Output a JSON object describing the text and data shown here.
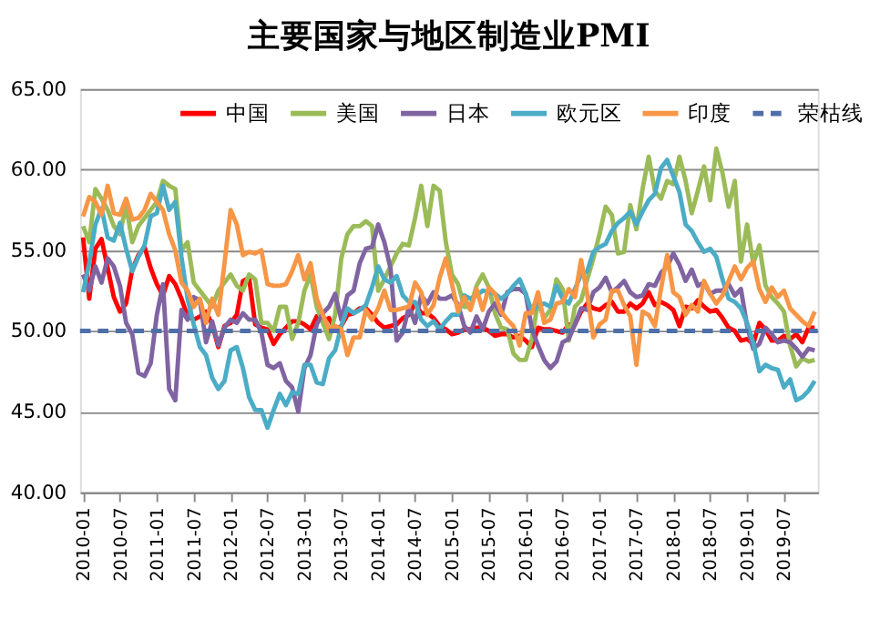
{
  "chart_data": {
    "type": "line",
    "title": "主要国家与地区制造业PMI",
    "categories": [
      "2010-01",
      null,
      null,
      null,
      null,
      null,
      "2010-07",
      null,
      null,
      null,
      null,
      null,
      "2011-01",
      null,
      null,
      null,
      null,
      null,
      "2011-07",
      null,
      null,
      null,
      null,
      null,
      "2012-01",
      null,
      null,
      null,
      null,
      null,
      "2012-07",
      null,
      null,
      null,
      null,
      null,
      "2013-01",
      null,
      null,
      null,
      null,
      null,
      "2013-07",
      null,
      null,
      null,
      null,
      null,
      "2014-01",
      null,
      null,
      null,
      null,
      null,
      "2014-07",
      null,
      null,
      null,
      null,
      null,
      "2015-01",
      null,
      null,
      null,
      null,
      null,
      "2015-07",
      null,
      null,
      null,
      null,
      null,
      "2016-01",
      null,
      null,
      null,
      null,
      null,
      "2016-07",
      null,
      null,
      null,
      null,
      null,
      "2017-01",
      null,
      null,
      null,
      null,
      null,
      "2017-07",
      null,
      null,
      null,
      null,
      null,
      "2018-01",
      null,
      null,
      null,
      null,
      null,
      "2018-07",
      null,
      null,
      null,
      null,
      null,
      "2019-01",
      null,
      null,
      null,
      null,
      null,
      "2019-07",
      null,
      null,
      null,
      null,
      null
    ],
    "series": [
      {
        "name": "中国",
        "color": "#ff0000",
        "values": [
          55.8,
          52.0,
          55.1,
          55.7,
          53.9,
          52.1,
          51.2,
          51.7,
          53.8,
          54.7,
          55.2,
          53.9,
          52.9,
          52.2,
          53.4,
          52.9,
          52.0,
          50.9,
          50.7,
          50.9,
          51.2,
          50.4,
          49.0,
          50.3,
          50.5,
          51.0,
          53.1,
          53.3,
          50.4,
          50.2,
          50.1,
          49.2,
          49.8,
          50.2,
          50.6,
          50.6,
          50.4,
          50.1,
          50.9,
          50.6,
          50.8,
          50.1,
          50.3,
          51.0,
          51.1,
          51.4,
          51.4,
          51.0,
          50.5,
          50.2,
          50.3,
          50.4,
          50.8,
          51.0,
          51.7,
          51.1,
          51.1,
          50.8,
          50.3,
          50.1,
          49.8,
          49.9,
          50.1,
          50.1,
          50.2,
          50.2,
          50.0,
          49.7,
          49.8,
          49.8,
          49.6,
          49.7,
          49.4,
          49.0,
          50.2,
          50.1,
          50.1,
          50.0,
          49.9,
          50.4,
          50.4,
          51.2,
          51.7,
          51.4,
          51.3,
          51.6,
          51.8,
          51.2,
          51.2,
          51.7,
          51.4,
          51.7,
          52.4,
          51.6,
          51.8,
          51.6,
          51.3,
          50.3,
          51.5,
          51.4,
          51.9,
          51.5,
          51.2,
          51.3,
          50.8,
          50.2,
          50.0,
          49.4,
          49.5,
          49.2,
          50.5,
          50.1,
          49.4,
          49.4,
          49.7,
          49.5,
          49.8,
          49.3,
          50.2,
          50.2
        ]
      },
      {
        "name": "美国",
        "color": "#9bbb59",
        "values": [
          56.5,
          55.5,
          58.8,
          58.2,
          57.5,
          56.5,
          56.0,
          57.8,
          55.5,
          56.5,
          57.0,
          57.5,
          58.0,
          59.3,
          59.0,
          58.8,
          55.0,
          55.5,
          53.0,
          52.5,
          52.0,
          51.5,
          52.5,
          53.0,
          53.5,
          52.8,
          52.5,
          53.5,
          53.2,
          50.5,
          50.5,
          50.0,
          51.5,
          51.5,
          49.5,
          50.5,
          52.5,
          53.5,
          51.5,
          50.5,
          49.5,
          51.0,
          54.5,
          56.0,
          56.5,
          56.5,
          56.8,
          56.5,
          52.5,
          53.2,
          54.0,
          54.8,
          55.4,
          55.3,
          57.0,
          59.0,
          56.5,
          59.0,
          58.7,
          55.5,
          53.5,
          52.9,
          51.5,
          51.5,
          52.8,
          53.5,
          52.7,
          51.1,
          50.2,
          50.1,
          48.6,
          48.2,
          48.2,
          49.5,
          51.8,
          50.8,
          51.3,
          53.2,
          52.6,
          49.4,
          51.5,
          51.9,
          53.2,
          54.5,
          56.0,
          57.7,
          57.2,
          54.8,
          54.9,
          57.8,
          56.3,
          58.8,
          60.8,
          58.7,
          58.2,
          59.3,
          59.1,
          60.8,
          59.3,
          57.3,
          58.7,
          60.2,
          58.1,
          61.3,
          59.8,
          57.7,
          59.3,
          54.3,
          56.6,
          54.2,
          55.3,
          52.8,
          52.1,
          51.7,
          51.2,
          49.1,
          47.8,
          48.3,
          48.1,
          48.2
        ]
      },
      {
        "name": "日本",
        "color": "#8064a2",
        "values": [
          53.5,
          52.5,
          54.0,
          53.0,
          54.5,
          54.0,
          52.8,
          50.5,
          49.8,
          47.4,
          47.2,
          48.0,
          51.0,
          52.9,
          46.4,
          45.7,
          51.3,
          50.7,
          52.1,
          51.9,
          49.3,
          50.6,
          49.1,
          50.2,
          50.7,
          50.5,
          51.1,
          50.7,
          50.7,
          49.9,
          47.9,
          47.7,
          48.0,
          46.9,
          46.5,
          45.0,
          47.7,
          48.5,
          50.4,
          51.1,
          51.5,
          52.3,
          50.7,
          52.2,
          52.5,
          54.2,
          55.1,
          55.2,
          56.6,
          55.5,
          53.9,
          49.4,
          49.9,
          51.5,
          50.5,
          52.2,
          51.7,
          52.4,
          52.0,
          52.0,
          52.2,
          51.6,
          50.3,
          49.9,
          50.9,
          50.1,
          51.2,
          51.7,
          51.0,
          52.4,
          52.6,
          52.6,
          52.3,
          50.1,
          49.1,
          48.2,
          47.7,
          48.1,
          49.3,
          49.5,
          50.4,
          51.4,
          51.3,
          52.4,
          52.7,
          53.3,
          52.4,
          52.7,
          53.1,
          52.4,
          52.1,
          52.2,
          52.9,
          52.8,
          53.6,
          54.0,
          54.8,
          54.1,
          53.1,
          53.8,
          52.8,
          53.0,
          52.3,
          52.5,
          52.5,
          52.9,
          52.2,
          52.6,
          50.3,
          48.9,
          49.2,
          50.2,
          49.8,
          49.3,
          49.4,
          49.3,
          48.9,
          48.4,
          48.9,
          48.8
        ]
      },
      {
        "name": "欧元区",
        "color": "#4bacc6",
        "values": [
          52.4,
          54.2,
          56.6,
          57.6,
          55.8,
          55.6,
          56.7,
          55.1,
          53.7,
          54.6,
          55.3,
          57.1,
          57.3,
          59.0,
          57.5,
          58.0,
          54.6,
          52.0,
          50.4,
          49.0,
          48.5,
          47.1,
          46.4,
          46.9,
          48.8,
          49.0,
          47.7,
          45.9,
          45.1,
          45.1,
          44.0,
          45.1,
          46.1,
          45.4,
          46.2,
          46.1,
          47.9,
          47.9,
          46.8,
          46.7,
          48.3,
          48.8,
          50.3,
          51.4,
          51.1,
          51.3,
          51.6,
          52.7,
          54.0,
          53.2,
          53.0,
          53.4,
          52.2,
          51.8,
          51.8,
          50.7,
          50.3,
          50.6,
          50.1,
          50.6,
          51.0,
          51.0,
          52.2,
          52.0,
          52.2,
          52.5,
          52.4,
          52.3,
          52.0,
          52.3,
          52.8,
          53.2,
          52.3,
          51.2,
          51.6,
          51.7,
          51.5,
          52.8,
          52.0,
          51.7,
          52.6,
          53.5,
          53.7,
          54.9,
          55.2,
          55.4,
          56.2,
          56.7,
          57.0,
          57.4,
          56.6,
          57.4,
          58.1,
          58.5,
          60.1,
          60.6,
          59.6,
          58.6,
          56.6,
          56.2,
          55.5,
          54.9,
          55.1,
          54.6,
          53.2,
          52.0,
          51.8,
          51.4,
          50.5,
          49.3,
          47.5,
          47.9,
          47.7,
          47.6,
          46.5,
          47.0,
          45.7,
          45.9,
          46.3,
          46.9
        ]
      },
      {
        "name": "印度",
        "color": "#f79646",
        "values": [
          57.1,
          58.3,
          58.0,
          57.2,
          59.0,
          57.3,
          57.2,
          58.2,
          56.9,
          57.0,
          57.5,
          58.5,
          58.0,
          57.5,
          56.0,
          55.0,
          53.0,
          52.5,
          51.5,
          52.0,
          50.5,
          52.0,
          51.0,
          54.2,
          57.5,
          56.6,
          54.7,
          54.9,
          54.8,
          55.0,
          52.9,
          52.8,
          52.8,
          52.9,
          53.7,
          54.7,
          53.2,
          54.2,
          52.0,
          51.0,
          50.1,
          50.3,
          50.1,
          48.5,
          49.6,
          49.6,
          51.3,
          50.7,
          51.4,
          52.5,
          51.3,
          51.3,
          51.4,
          51.5,
          53.0,
          52.4,
          51.0,
          51.6,
          53.3,
          54.5,
          52.9,
          51.2,
          52.1,
          51.3,
          52.6,
          51.3,
          52.7,
          52.3,
          51.2,
          50.7,
          50.3,
          49.1,
          51.1,
          51.1,
          52.4,
          50.5,
          50.7,
          51.7,
          51.8,
          52.6,
          52.1,
          54.4,
          52.3,
          49.6,
          50.4,
          50.7,
          52.5,
          52.5,
          51.6,
          50.9,
          47.9,
          51.2,
          51.0,
          50.3,
          52.6,
          54.7,
          52.4,
          52.1,
          51.0,
          51.6,
          51.2,
          53.1,
          52.3,
          51.7,
          52.2,
          53.1,
          54.0,
          53.2,
          53.9,
          54.3,
          52.6,
          51.8,
          52.7,
          52.1,
          52.5,
          51.4,
          51.0,
          50.6,
          50.3,
          51.2
        ]
      }
    ],
    "ref_lines": [
      {
        "axis": "y",
        "value": 50,
        "label": "荣枯线",
        "color": "#4f6fa8",
        "line_style": "dashed"
      }
    ],
    "ylim": [
      40,
      65
    ],
    "yticks": [
      {
        "value": 40,
        "label": "40.00"
      },
      {
        "value": 45,
        "label": "45.00"
      },
      {
        "value": 50,
        "label": "50.00"
      },
      {
        "value": 55,
        "label": "55.00"
      },
      {
        "value": 60,
        "label": "60.00"
      },
      {
        "value": 65,
        "label": "65.00"
      }
    ],
    "grid": "y",
    "legend": "top",
    "line_style": "solid",
    "marker": "none"
  }
}
